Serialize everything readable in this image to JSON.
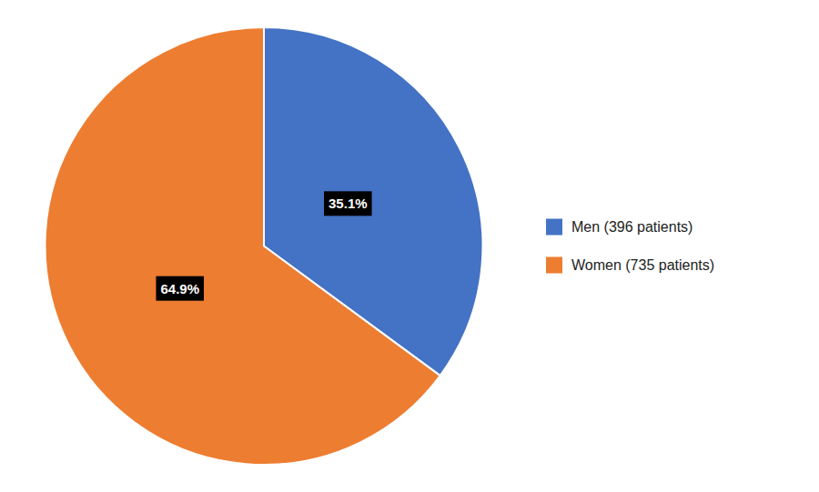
{
  "chart_data": {
    "type": "pie",
    "categories": [
      "Men (396 patients)",
      "Women (735 patients)"
    ],
    "values": [
      35.1,
      64.9
    ],
    "colors": [
      "#4472C4",
      "#ED7D31"
    ],
    "data_labels": true,
    "value_labels": [
      "35.1%",
      "64.9%"
    ],
    "legend": "right"
  }
}
